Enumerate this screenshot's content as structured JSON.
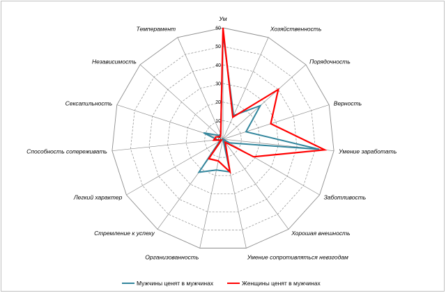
{
  "chart_data": {
    "type": "radar",
    "title": "",
    "categories": [
      "Ум",
      "Хозяйственность",
      "Порядочность",
      "Верность",
      "Умение заработать",
      "Заботливость",
      "Хорошая внешность",
      "Умение сопротивляться невзгодам",
      "Организованность",
      "Стремление к успеху",
      "Легкий характер",
      "Способность сопереживать",
      "Сексапильность",
      "Независимость",
      "Темперамент"
    ],
    "rlim": [
      0,
      60
    ],
    "ticks": [
      0,
      10,
      20,
      30,
      40,
      50,
      60
    ],
    "series": [
      {
        "name": "Мужчины ценят в мужчинах",
        "color": "#31859c",
        "values": [
          57,
          14,
          27,
          13,
          52,
          4,
          0,
          18,
          17,
          22,
          2,
          3,
          11,
          3,
          3
        ]
      },
      {
        "name": "Женщины ценят в мужчинах",
        "color": "#ff0000",
        "values": [
          60,
          13,
          40,
          27,
          55,
          19,
          2,
          18,
          12,
          13,
          1,
          5,
          4,
          2,
          3
        ]
      }
    ],
    "legend_position": "bottom"
  }
}
